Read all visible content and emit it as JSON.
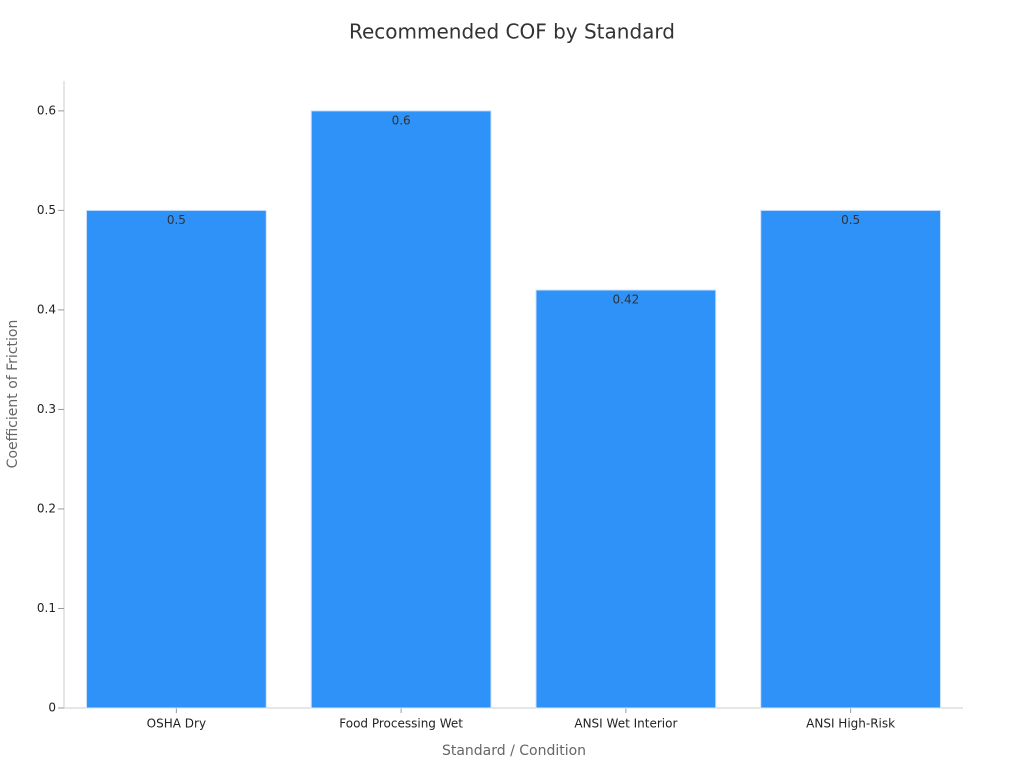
{
  "chart_data": {
    "type": "bar",
    "title": "Recommended COF by Standard",
    "x_label": "Standard / Condition",
    "y_label": "Coefficient of Friction",
    "categories": [
      "OSHA Dry",
      "Food Processing Wet",
      "ANSI Wet Interior",
      "ANSI High-Risk"
    ],
    "values": [
      0.5,
      0.6,
      0.42,
      0.5
    ],
    "color": "#2f92f8",
    "ylim": [
      0,
      0.63
    ],
    "yticks": [
      0,
      0.1,
      0.2,
      0.3,
      0.4,
      0.5,
      0.6
    ],
    "grid": false
  }
}
